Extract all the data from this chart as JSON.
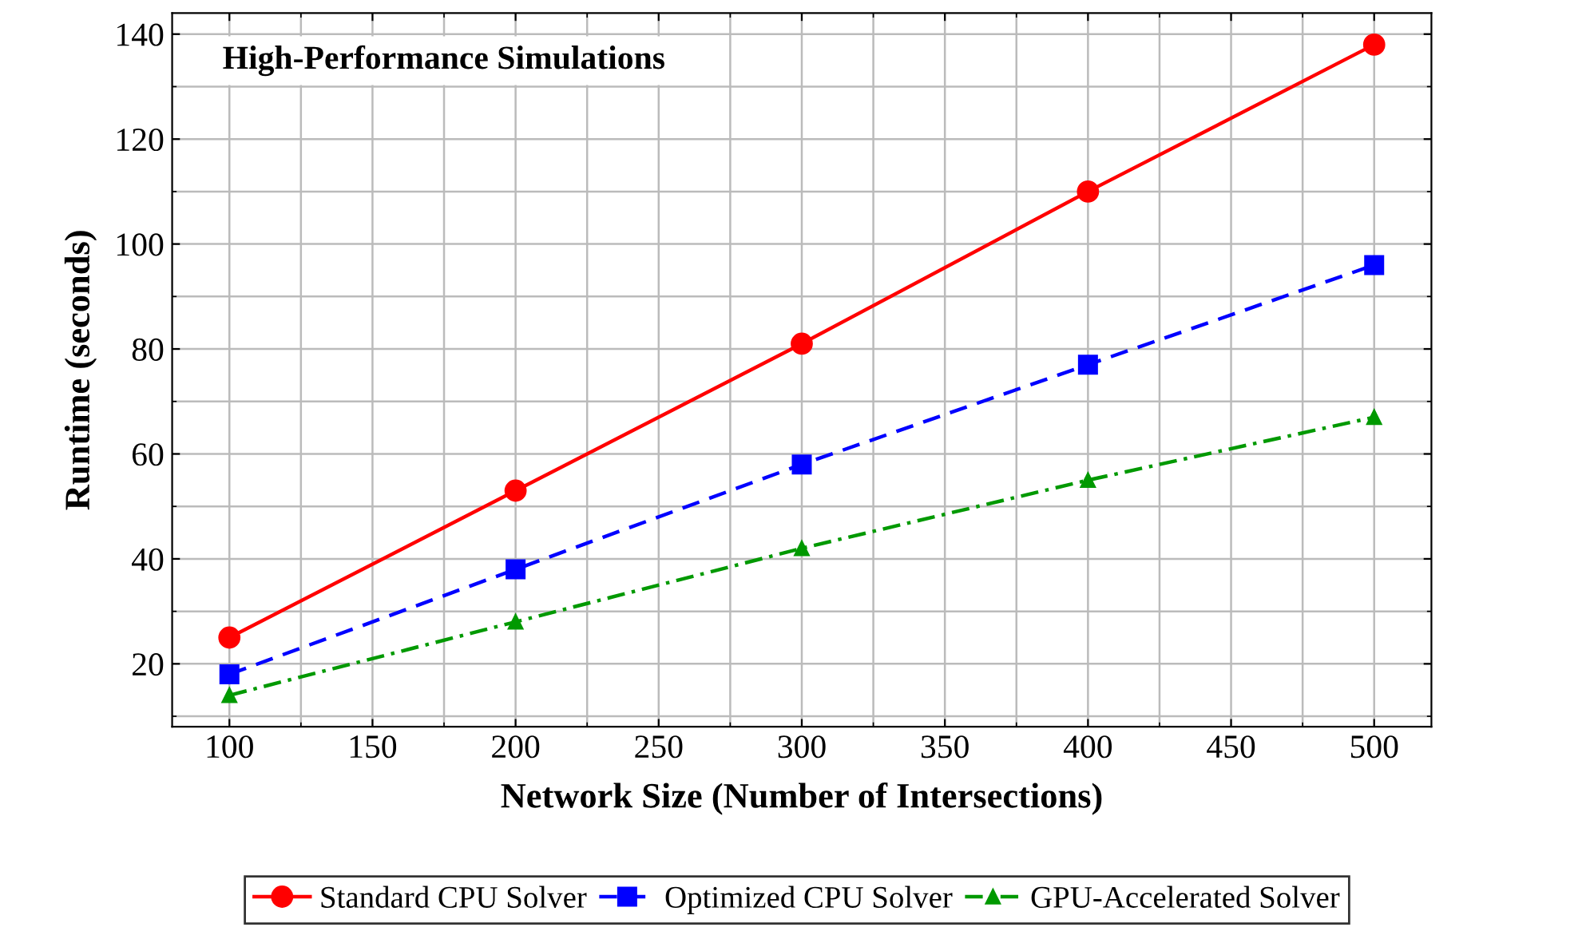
{
  "chart_data": {
    "type": "line",
    "title": "High-Performance Simulations",
    "xlabel": "Network Size (Number of Intersections)",
    "ylabel": "Runtime (seconds)",
    "x": [
      100,
      200,
      300,
      400,
      500
    ],
    "series": [
      {
        "name": "Standard CPU Solver",
        "color": "#ff0000",
        "marker": "circle",
        "line_style": "solid",
        "values": [
          25,
          53,
          81,
          110,
          138
        ]
      },
      {
        "name": "Optimized CPU Solver",
        "color": "#0000ff",
        "marker": "square",
        "line_style": "dashed",
        "values": [
          18,
          38,
          58,
          77,
          96
        ]
      },
      {
        "name": "GPU-Accelerated Solver",
        "color": "#009900",
        "marker": "triangle",
        "line_style": "dashdot",
        "values": [
          14,
          28,
          42,
          55,
          67
        ]
      }
    ],
    "xlim": [
      80,
      520
    ],
    "ylim": [
      8,
      144
    ],
    "xticks": [
      100,
      150,
      200,
      250,
      300,
      350,
      400,
      450,
      500
    ],
    "yticks": [
      20,
      40,
      60,
      80,
      100,
      120,
      140
    ],
    "grid": true,
    "legend": "bottom"
  }
}
